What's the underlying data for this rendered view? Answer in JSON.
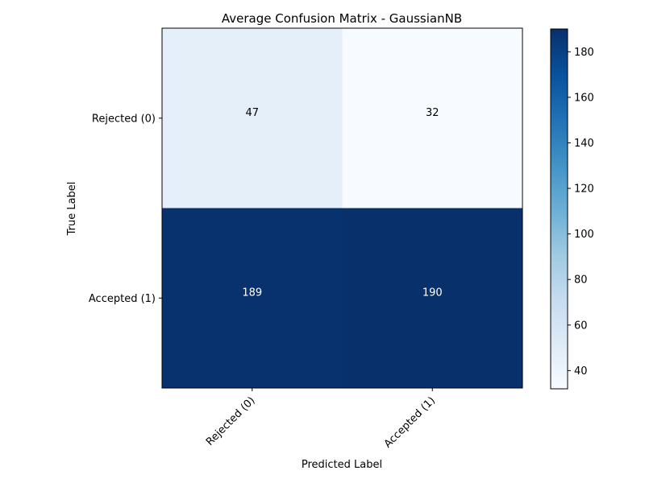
{
  "chart_data": {
    "type": "heatmap",
    "title": "Average Confusion Matrix - GaussianNB",
    "xlabel": "Predicted Label",
    "ylabel": "True Label",
    "x_categories": [
      "Rejected (0)",
      "Accepted (1)"
    ],
    "y_categories": [
      "Rejected (0)",
      "Accepted (1)"
    ],
    "values": [
      [
        47,
        32
      ],
      [
        189,
        190
      ]
    ],
    "colormap": "Blues",
    "color_min": 32,
    "color_max": 190,
    "colorbar_ticks": [
      40,
      60,
      80,
      100,
      120,
      140,
      160,
      180
    ],
    "grid": false,
    "colors": {
      "low": "#f7fbff",
      "high": "#08306b",
      "text_dark": "#000000",
      "text_light": "#ffffff"
    }
  }
}
